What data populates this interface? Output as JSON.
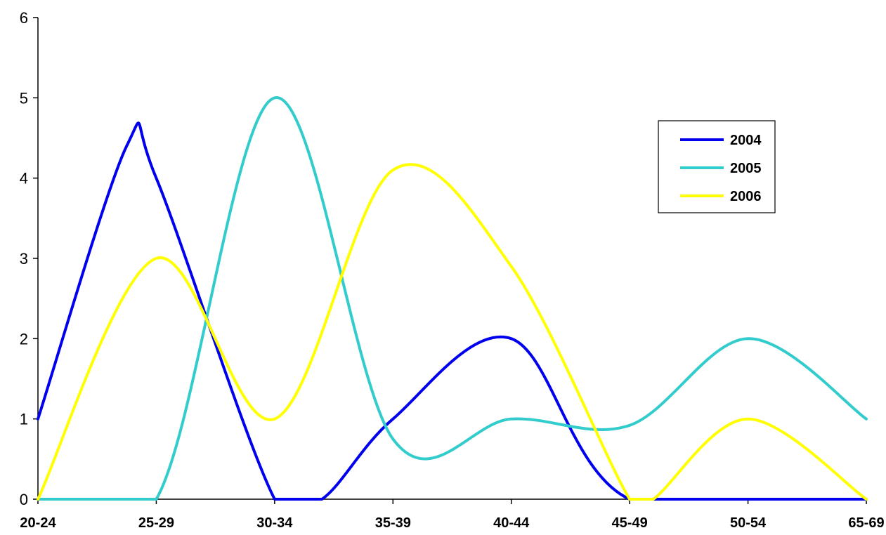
{
  "chart_data": {
    "type": "line",
    "smooth": true,
    "categories": [
      "20-24",
      "25-29",
      "30-34",
      "35-39",
      "40-44",
      "45-49",
      "50-54",
      "65-69"
    ],
    "series": [
      {
        "name": "2004",
        "color": "#0000ee",
        "points": [
          [
            0,
            1
          ],
          [
            0.75,
            4.4
          ],
          [
            1,
            4
          ],
          [
            2,
            0
          ],
          [
            2.4,
            0
          ],
          [
            3,
            1
          ],
          [
            4,
            2
          ],
          [
            5,
            0
          ],
          [
            7,
            0
          ]
        ]
      },
      {
        "name": "2005",
        "color": "#33cccc",
        "points": [
          [
            0,
            0
          ],
          [
            1,
            0
          ],
          [
            2,
            5
          ],
          [
            3,
            0.75
          ],
          [
            4,
            1
          ],
          [
            5,
            0.92
          ],
          [
            6,
            2
          ],
          [
            7,
            1
          ]
        ]
      },
      {
        "name": "2006",
        "color": "#ffff00",
        "points": [
          [
            0,
            0
          ],
          [
            1,
            3
          ],
          [
            2,
            1
          ],
          [
            3,
            4.1
          ],
          [
            4,
            2.9
          ],
          [
            5,
            0
          ],
          [
            5.2,
            0
          ],
          [
            6,
            1
          ],
          [
            7,
            0
          ]
        ]
      }
    ],
    "ylim": [
      0,
      6
    ],
    "yticks": [
      0,
      1,
      2,
      3,
      4,
      5,
      6
    ],
    "xlabel": "",
    "ylabel": "",
    "title": "",
    "grid": false,
    "legend_position": "right"
  }
}
